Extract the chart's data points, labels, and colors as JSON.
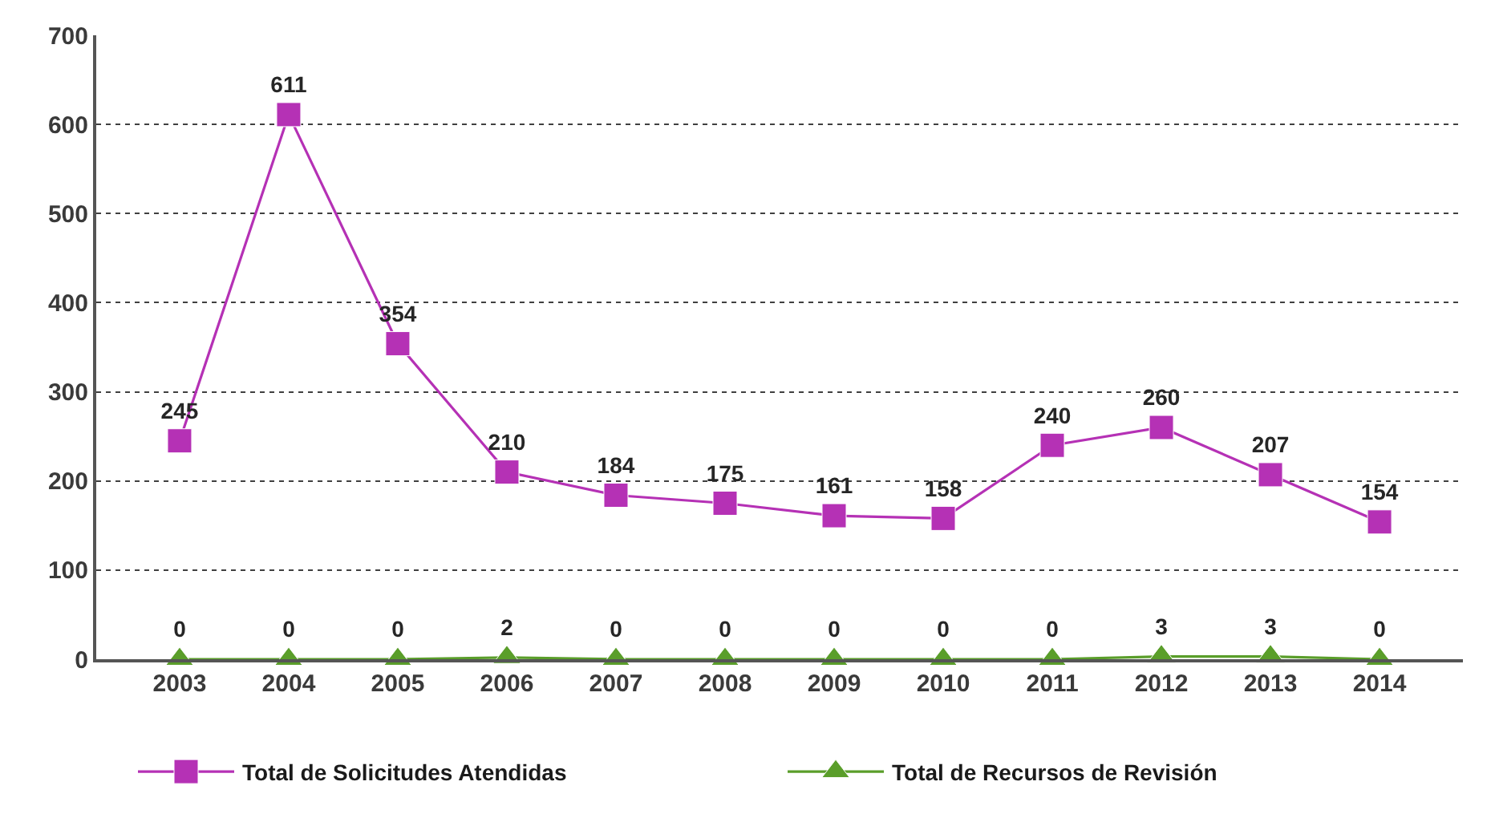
{
  "chart_data": {
    "type": "line",
    "categories": [
      "2003",
      "2004",
      "2005",
      "2006",
      "2007",
      "2008",
      "2009",
      "2010",
      "2011",
      "2012",
      "2013",
      "2014"
    ],
    "series": [
      {
        "name": "Total de Solicitudes Atendidas",
        "color": "#b531b5",
        "marker": "square",
        "values": [
          245,
          611,
          354,
          210,
          184,
          175,
          161,
          158,
          240,
          260,
          207,
          154
        ]
      },
      {
        "name": "Total de Recursos de Revisión",
        "color": "#5a9e2a",
        "marker": "triangle",
        "values": [
          0,
          0,
          0,
          2,
          0,
          0,
          0,
          0,
          0,
          3,
          3,
          0
        ]
      }
    ],
    "ylim": [
      0,
      700
    ],
    "yticks": [
      0,
      100,
      200,
      300,
      400,
      500,
      600,
      700
    ],
    "grid": "y",
    "legend": "bottom",
    "data_labels": true,
    "line_style": "solid"
  }
}
